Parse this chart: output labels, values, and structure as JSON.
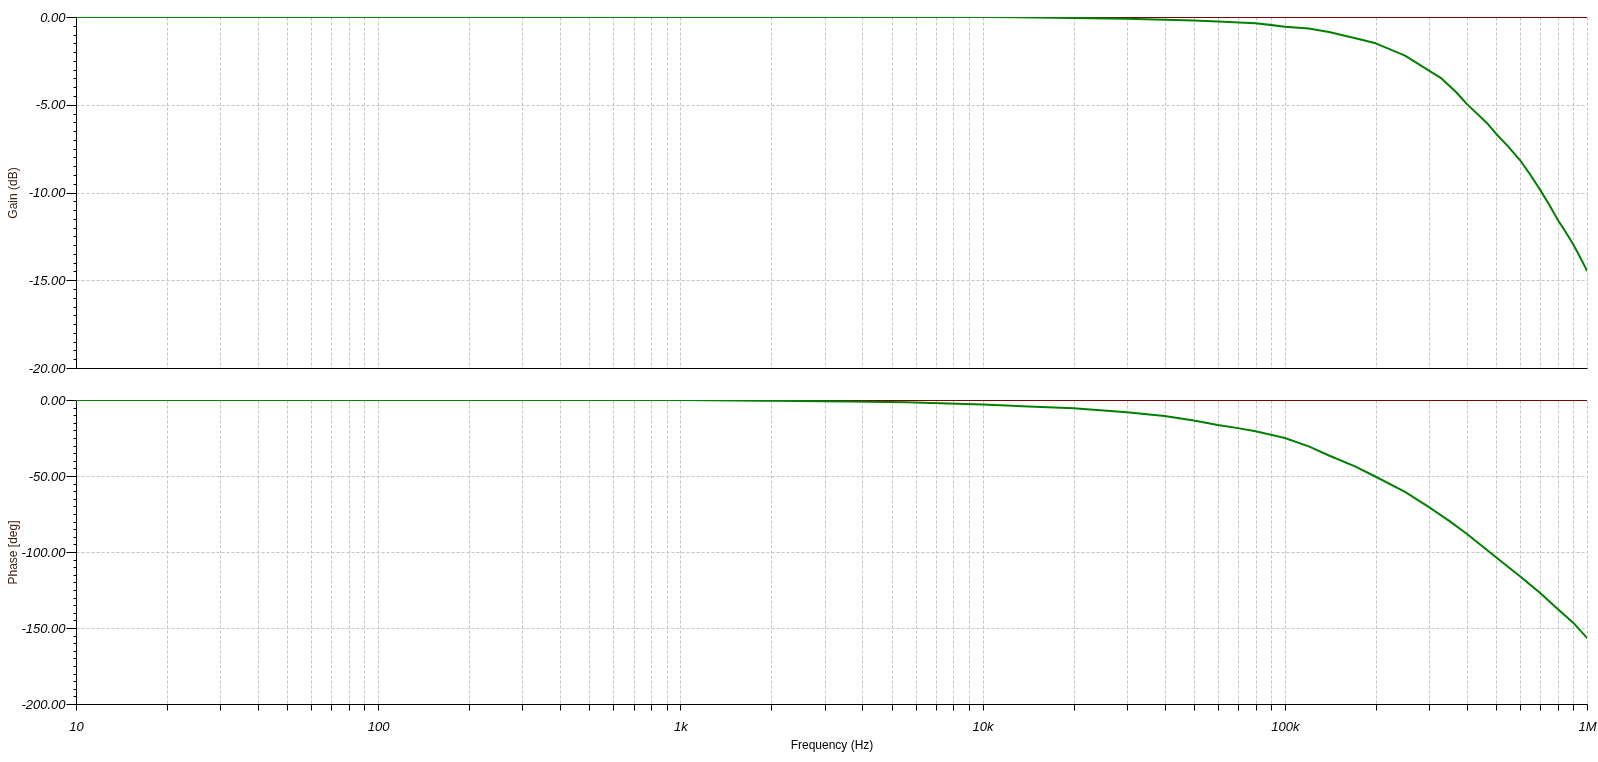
{
  "chart_data": [
    {
      "type": "line",
      "ylabel": "Gain (dB)",
      "log": "x",
      "grid": true,
      "tick_labels": "y",
      "xlim": [
        10,
        1000000
      ],
      "xticks": [
        {
          "value": 10,
          "label": null
        },
        {
          "value": 20,
          "label": null
        },
        {
          "value": 30,
          "label": null
        },
        {
          "value": 40,
          "label": null
        },
        {
          "value": 50,
          "label": null
        },
        {
          "value": 60,
          "label": null
        },
        {
          "value": 70,
          "label": null
        },
        {
          "value": 80,
          "label": null
        },
        {
          "value": 90,
          "label": null
        },
        {
          "value": 100,
          "label": null
        },
        {
          "value": 200,
          "label": null
        },
        {
          "value": 300,
          "label": null
        },
        {
          "value": 400,
          "label": null
        },
        {
          "value": 500,
          "label": null
        },
        {
          "value": 600,
          "label": null
        },
        {
          "value": 700,
          "label": null
        },
        {
          "value": 800,
          "label": null
        },
        {
          "value": 900,
          "label": null
        },
        {
          "value": 1000,
          "label": null
        },
        {
          "value": 2000,
          "label": null
        },
        {
          "value": 3000,
          "label": null
        },
        {
          "value": 4000,
          "label": null
        },
        {
          "value": 5000,
          "label": null
        },
        {
          "value": 6000,
          "label": null
        },
        {
          "value": 7000,
          "label": null
        },
        {
          "value": 8000,
          "label": null
        },
        {
          "value": 9000,
          "label": null
        },
        {
          "value": 10000,
          "label": null
        },
        {
          "value": 20000,
          "label": null
        },
        {
          "value": 30000,
          "label": null
        },
        {
          "value": 40000,
          "label": null
        },
        {
          "value": 50000,
          "label": null
        },
        {
          "value": 60000,
          "label": null
        },
        {
          "value": 70000,
          "label": null
        },
        {
          "value": 80000,
          "label": null
        },
        {
          "value": 90000,
          "label": null
        },
        {
          "value": 100000,
          "label": null
        },
        {
          "value": 200000,
          "label": null
        },
        {
          "value": 300000,
          "label": null
        },
        {
          "value": 400000,
          "label": null
        },
        {
          "value": 500000,
          "label": null
        },
        {
          "value": 600000,
          "label": null
        },
        {
          "value": 700000,
          "label": null
        },
        {
          "value": 800000,
          "label": null
        },
        {
          "value": 900000,
          "label": null
        },
        {
          "value": 1000000,
          "label": null
        }
      ],
      "ylim": [
        -20,
        0
      ],
      "yticks": [
        {
          "value": 0,
          "label": "0.00"
        },
        {
          "value": -0.5,
          "label": null
        },
        {
          "value": -1,
          "label": null
        },
        {
          "value": -1.5,
          "label": null
        },
        {
          "value": -2,
          "label": null
        },
        {
          "value": -2.5,
          "label": null
        },
        {
          "value": -3,
          "label": null
        },
        {
          "value": -3.5,
          "label": null
        },
        {
          "value": -4,
          "label": null
        },
        {
          "value": -4.5,
          "label": null
        },
        {
          "value": -5,
          "label": "-5.00"
        },
        {
          "value": -5.5,
          "label": null
        },
        {
          "value": -6,
          "label": null
        },
        {
          "value": -6.5,
          "label": null
        },
        {
          "value": -7,
          "label": null
        },
        {
          "value": -7.5,
          "label": null
        },
        {
          "value": -8,
          "label": null
        },
        {
          "value": -8.5,
          "label": null
        },
        {
          "value": -9,
          "label": null
        },
        {
          "value": -9.5,
          "label": null
        },
        {
          "value": -10,
          "label": "-10.00"
        },
        {
          "value": -10.5,
          "label": null
        },
        {
          "value": -11,
          "label": null
        },
        {
          "value": -11.5,
          "label": null
        },
        {
          "value": -12,
          "label": null
        },
        {
          "value": -12.5,
          "label": null
        },
        {
          "value": -13,
          "label": null
        },
        {
          "value": -13.5,
          "label": null
        },
        {
          "value": -14,
          "label": null
        },
        {
          "value": -14.5,
          "label": null
        },
        {
          "value": -15,
          "label": "-15.00"
        },
        {
          "value": -15.5,
          "label": null
        },
        {
          "value": -16,
          "label": null
        },
        {
          "value": -16.5,
          "label": null
        },
        {
          "value": -17,
          "label": null
        },
        {
          "value": -17.5,
          "label": null
        },
        {
          "value": -18,
          "label": null
        },
        {
          "value": -18.5,
          "label": null
        },
        {
          "value": -19,
          "label": null
        },
        {
          "value": -19.5,
          "label": null
        },
        {
          "value": -20,
          "label": "-20.00"
        }
      ],
      "series": [
        {
          "color": "#800000",
          "x": [
            12700,
            1000000
          ],
          "values": [
            0,
            0
          ]
        },
        {
          "color": "#008000",
          "x": [
            10,
            100,
            1000,
            10000,
            20000,
            30000,
            50000,
            60000,
            80000,
            100000,
            120000,
            140000,
            170000,
            200000,
            250000,
            300000,
            330000,
            370000,
            400000,
            470000,
            500000,
            550000,
            600000,
            650000,
            700000,
            750000,
            800000,
            850000,
            900000,
            950000,
            1000000
          ],
          "values": [
            0,
            0,
            0,
            0,
            -0.05,
            -0.1,
            -0.2,
            -0.25,
            -0.35,
            -0.55,
            -0.65,
            -0.85,
            -1.2,
            -1.5,
            -2.2,
            -3.05,
            -3.5,
            -4.3,
            -4.95,
            -6.1,
            -6.65,
            -7.4,
            -8.15,
            -9.0,
            -9.85,
            -10.7,
            -11.55,
            -12.25,
            -12.95,
            -13.7,
            -14.45
          ]
        }
      ]
    },
    {
      "type": "line",
      "xlabel": "Frequency (Hz)",
      "ylabel": "Phase [deg]",
      "log": "x",
      "grid": true,
      "xlim": [
        10,
        1000000
      ],
      "xticks": [
        10,
        {
          "value": 20,
          "label": null
        },
        {
          "value": 30,
          "label": null
        },
        {
          "value": 40,
          "label": null
        },
        {
          "value": 50,
          "label": null
        },
        {
          "value": 60,
          "label": null
        },
        {
          "value": 70,
          "label": null
        },
        {
          "value": 80,
          "label": null
        },
        {
          "value": 90,
          "label": null
        },
        100,
        {
          "value": 200,
          "label": null
        },
        {
          "value": 300,
          "label": null
        },
        {
          "value": 400,
          "label": null
        },
        {
          "value": 500,
          "label": null
        },
        {
          "value": 600,
          "label": null
        },
        {
          "value": 700,
          "label": null
        },
        {
          "value": 800,
          "label": null
        },
        {
          "value": 900,
          "label": null
        },
        {
          "value": 1000,
          "label": "1k"
        },
        {
          "value": 2000,
          "label": null
        },
        {
          "value": 3000,
          "label": null
        },
        {
          "value": 4000,
          "label": null
        },
        {
          "value": 5000,
          "label": null
        },
        {
          "value": 6000,
          "label": null
        },
        {
          "value": 7000,
          "label": null
        },
        {
          "value": 8000,
          "label": null
        },
        {
          "value": 9000,
          "label": null
        },
        {
          "value": 10000,
          "label": "10k"
        },
        {
          "value": 20000,
          "label": null
        },
        {
          "value": 30000,
          "label": null
        },
        {
          "value": 40000,
          "label": null
        },
        {
          "value": 50000,
          "label": null
        },
        {
          "value": 60000,
          "label": null
        },
        {
          "value": 70000,
          "label": null
        },
        {
          "value": 80000,
          "label": null
        },
        {
          "value": 90000,
          "label": null
        },
        {
          "value": 100000,
          "label": "100k"
        },
        {
          "value": 200000,
          "label": null
        },
        {
          "value": 300000,
          "label": null
        },
        {
          "value": 400000,
          "label": null
        },
        {
          "value": 500000,
          "label": null
        },
        {
          "value": 600000,
          "label": null
        },
        {
          "value": 700000,
          "label": null
        },
        {
          "value": 800000,
          "label": null
        },
        {
          "value": 900000,
          "label": null
        },
        {
          "value": 1000000,
          "label": "1M"
        }
      ],
      "ylim": [
        -200,
        0
      ],
      "yticks": [
        {
          "value": 0,
          "label": "0.00"
        },
        {
          "value": -5,
          "label": null
        },
        {
          "value": -10,
          "label": null
        },
        {
          "value": -15,
          "label": null
        },
        {
          "value": -20,
          "label": null
        },
        {
          "value": -25,
          "label": null
        },
        {
          "value": -30,
          "label": null
        },
        {
          "value": -35,
          "label": null
        },
        {
          "value": -40,
          "label": null
        },
        {
          "value": -45,
          "label": null
        },
        {
          "value": -50,
          "label": "-50.00"
        },
        {
          "value": -55,
          "label": null
        },
        {
          "value": -60,
          "label": null
        },
        {
          "value": -65,
          "label": null
        },
        {
          "value": -70,
          "label": null
        },
        {
          "value": -75,
          "label": null
        },
        {
          "value": -80,
          "label": null
        },
        {
          "value": -85,
          "label": null
        },
        {
          "value": -90,
          "label": null
        },
        {
          "value": -95,
          "label": null
        },
        {
          "value": -100,
          "label": "-100.00"
        },
        {
          "value": -105,
          "label": null
        },
        {
          "value": -110,
          "label": null
        },
        {
          "value": -115,
          "label": null
        },
        {
          "value": -120,
          "label": null
        },
        {
          "value": -125,
          "label": null
        },
        {
          "value": -130,
          "label": null
        },
        {
          "value": -135,
          "label": null
        },
        {
          "value": -140,
          "label": null
        },
        {
          "value": -145,
          "label": null
        },
        {
          "value": -150,
          "label": "-150.00"
        },
        {
          "value": -155,
          "label": null
        },
        {
          "value": -160,
          "label": null
        },
        {
          "value": -165,
          "label": null
        },
        {
          "value": -170,
          "label": null
        },
        {
          "value": -175,
          "label": null
        },
        {
          "value": -180,
          "label": null
        },
        {
          "value": -185,
          "label": null
        },
        {
          "value": -190,
          "label": null
        },
        {
          "value": -195,
          "label": null
        },
        {
          "value": -200,
          "label": "-200.00"
        }
      ],
      "series": [
        {
          "color": "#800000",
          "x": [
            1100,
            1000000
          ],
          "values": [
            0,
            0
          ]
        },
        {
          "color": "#008000",
          "x": [
            10,
            100,
            1000,
            2000,
            3600,
            5600,
            10000,
            20000,
            30000,
            40000,
            50000,
            60000,
            70000,
            80000,
            100000,
            120000,
            140000,
            170000,
            200000,
            250000,
            300000,
            350000,
            400000,
            500000,
            600000,
            700000,
            800000,
            900000,
            1000000
          ],
          "values": [
            0,
            0,
            0,
            -0.5,
            -1,
            -1.5,
            -3,
            -5.5,
            -8,
            -10.5,
            -13.5,
            -16.5,
            -18.5,
            -20.5,
            -25,
            -30.5,
            -36.5,
            -43.5,
            -50.5,
            -60.5,
            -70.5,
            -79.5,
            -88,
            -103.5,
            -116,
            -127,
            -137.5,
            -146.5,
            -156.5
          ]
        }
      ]
    }
  ]
}
